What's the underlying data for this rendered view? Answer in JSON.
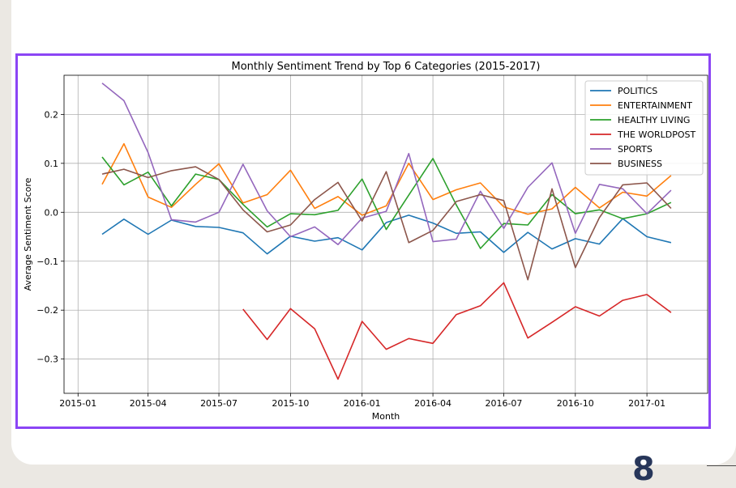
{
  "chart_data": {
    "type": "line",
    "title": "Monthly Sentiment Trend by Top 6 Categories (2015-2017)",
    "xlabel": "Month",
    "ylabel": "Average Sentiment Score",
    "ylim": [
      -0.37,
      0.28
    ],
    "grid": true,
    "legend_position": "top-right",
    "x": [
      "2015-02",
      "2015-03",
      "2015-04",
      "2015-05",
      "2015-06",
      "2015-07",
      "2015-08",
      "2015-09",
      "2015-10",
      "2015-11",
      "2015-12",
      "2016-01",
      "2016-02",
      "2016-03",
      "2016-04",
      "2016-05",
      "2016-06",
      "2016-07",
      "2016-08",
      "2016-09",
      "2016-10",
      "2016-11",
      "2016-12",
      "2017-01",
      "2017-02"
    ],
    "x_ticks": [
      "2015-01",
      "2015-04",
      "2015-07",
      "2015-10",
      "2016-01",
      "2016-04",
      "2016-07",
      "2016-10",
      "2017-01"
    ],
    "y_ticks": [
      -0.3,
      -0.2,
      -0.1,
      0.0,
      0.1,
      0.2
    ],
    "y_tick_labels": [
      "−0.3",
      "−0.2",
      "−0.1",
      "0.0",
      "0.1",
      "0.2"
    ],
    "series": [
      {
        "name": "POLITICS",
        "color": "#1f77b4",
        "values": [
          -0.045,
          -0.014,
          -0.045,
          -0.016,
          -0.029,
          -0.031,
          -0.042,
          -0.085,
          -0.049,
          -0.059,
          -0.052,
          -0.077,
          -0.021,
          -0.006,
          -0.022,
          -0.043,
          -0.04,
          -0.082,
          -0.041,
          -0.075,
          -0.054,
          -0.065,
          -0.013,
          -0.05,
          -0.062
        ]
      },
      {
        "name": "ENTERTAINMENT",
        "color": "#ff7f0e",
        "values": [
          0.057,
          0.14,
          0.031,
          0.01,
          0.057,
          0.099,
          0.019,
          0.036,
          0.086,
          0.008,
          0.032,
          -0.006,
          0.013,
          0.1,
          0.026,
          0.046,
          0.06,
          0.011,
          -0.004,
          0.007,
          0.051,
          0.009,
          0.041,
          0.033,
          0.075
        ]
      },
      {
        "name": "HEALTHY LIVING",
        "color": "#2ca02c",
        "values": [
          0.113,
          0.056,
          0.082,
          0.013,
          0.078,
          0.067,
          0.016,
          -0.03,
          -0.003,
          -0.005,
          0.004,
          0.068,
          -0.035,
          0.035,
          0.11,
          0.015,
          -0.074,
          -0.023,
          -0.026,
          0.036,
          -0.003,
          0.005,
          -0.013,
          -0.003,
          0.02
        ]
      },
      {
        "name": "THE WORLDPOST",
        "color": "#d62728",
        "values": [
          null,
          null,
          null,
          null,
          null,
          null,
          -0.198,
          -0.26,
          -0.197,
          -0.238,
          -0.341,
          -0.223,
          -0.28,
          -0.258,
          -0.268,
          -0.209,
          -0.191,
          -0.144,
          -0.257,
          -0.225,
          -0.193,
          -0.212,
          -0.18,
          -0.168,
          -0.205
        ]
      },
      {
        "name": "SPORTS",
        "color": "#9467bd",
        "values": [
          0.264,
          0.228,
          0.122,
          -0.015,
          -0.02,
          0.0,
          0.098,
          0.003,
          -0.05,
          -0.03,
          -0.066,
          -0.012,
          0.002,
          0.12,
          -0.06,
          -0.055,
          0.043,
          -0.033,
          0.051,
          0.101,
          -0.043,
          0.057,
          0.048,
          -0.003,
          0.045
        ]
      },
      {
        "name": "BUSINESS",
        "color": "#8c564b",
        "values": [
          0.078,
          0.088,
          0.071,
          0.085,
          0.093,
          0.067,
          0.005,
          -0.04,
          -0.026,
          0.026,
          0.061,
          -0.018,
          0.083,
          -0.062,
          -0.037,
          0.022,
          0.036,
          0.024,
          -0.138,
          0.048,
          -0.113,
          -0.011,
          0.056,
          0.06,
          0.008
        ]
      }
    ]
  }
}
